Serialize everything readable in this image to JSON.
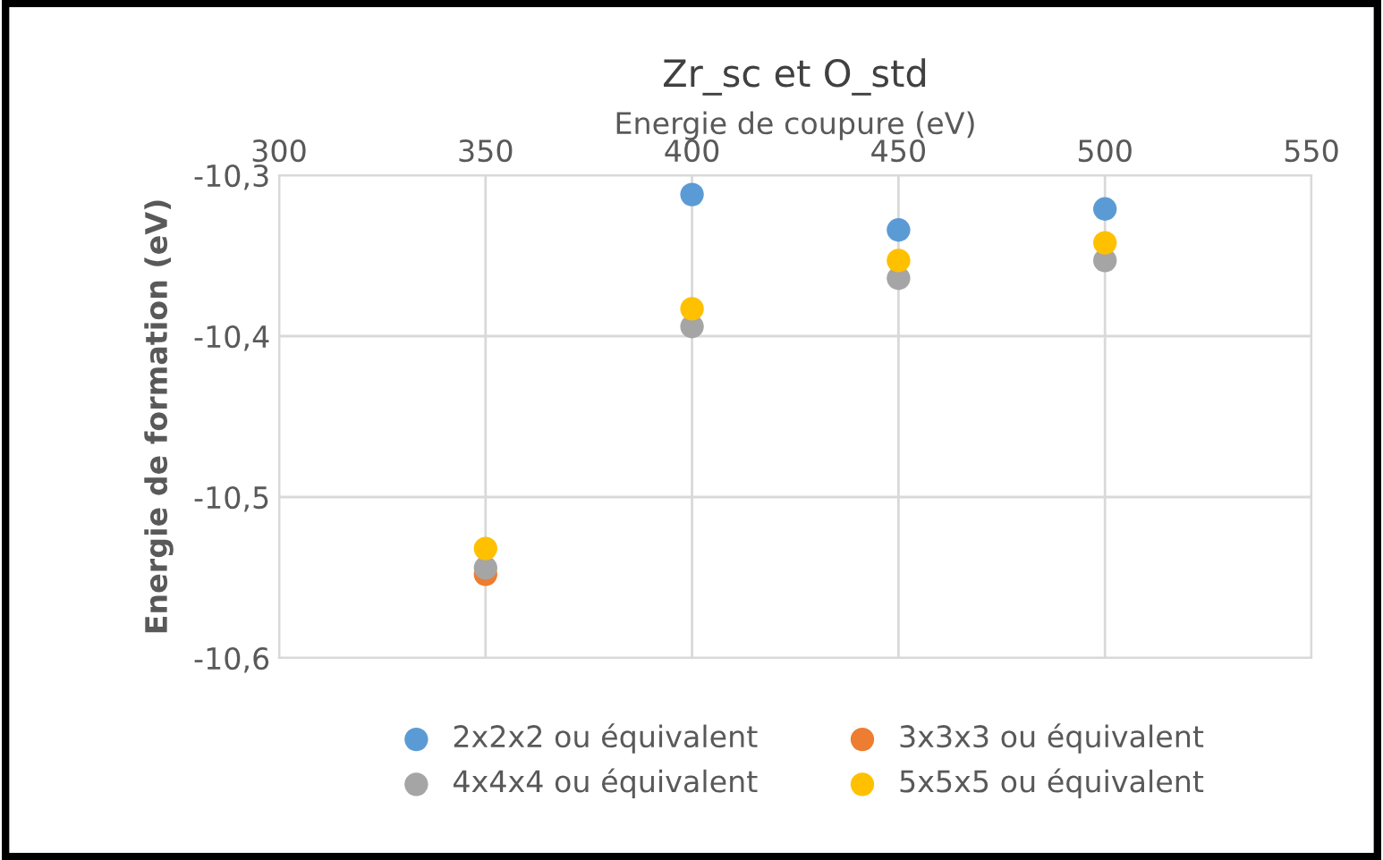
{
  "chart_data": {
    "type": "scatter",
    "title": "Zr_sc et O_std",
    "xlabel": "Energie de coupure (eV)",
    "ylabel": "Energie de formation (eV)",
    "x": [
      350,
      400,
      450,
      500
    ],
    "series": [
      {
        "name": "2x2x2 ou équivalent",
        "color": "#5b9bd5",
        "values": [
          null,
          -10.312,
          -10.334,
          -10.321
        ]
      },
      {
        "name": "3x3x3 ou équivalent",
        "color": "#ed7d31",
        "values": [
          -10.548,
          null,
          null,
          null
        ]
      },
      {
        "name": "4x4x4 ou équivalent",
        "color": "#a5a5a5",
        "values": [
          -10.544,
          -10.394,
          -10.364,
          -10.353
        ]
      },
      {
        "name": "5x5x5 ou équivalent",
        "color": "#ffc000",
        "values": [
          -10.532,
          -10.383,
          -10.353,
          -10.342
        ]
      }
    ],
    "xlim": [
      300,
      550
    ],
    "xticks": [
      300,
      350,
      400,
      450,
      500,
      550
    ],
    "ylim": [
      -10.6,
      -10.3
    ],
    "yticks": [
      {
        "value": -10.6,
        "label": "-10,6"
      },
      {
        "value": -10.5,
        "label": "-10,5"
      },
      {
        "value": -10.4,
        "label": "-10,4"
      },
      {
        "value": -10.3,
        "label": "-10,3"
      }
    ],
    "grid": true,
    "legend": "bottom",
    "marker": "circle"
  }
}
